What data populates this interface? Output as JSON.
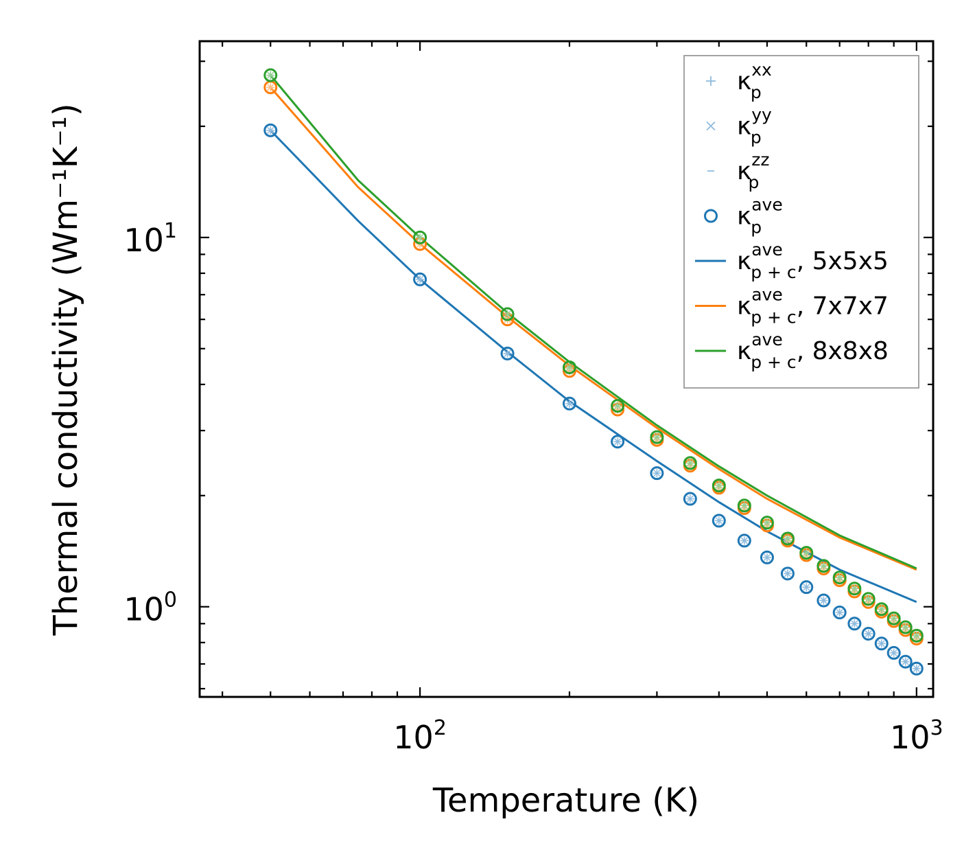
{
  "chart_data": {
    "type": "line",
    "xscale": "log",
    "yscale": "log",
    "xlabel": "Temperature (K)",
    "ylabel": "Thermal conductivity (Wm⁻¹K⁻¹)",
    "xlim": [
      36,
      1080
    ],
    "ylim": [
      0.57,
      34
    ],
    "xticks": [
      {
        "value": 100,
        "base": "10",
        "exp": "2"
      },
      {
        "value": 1000,
        "base": "10",
        "exp": "3"
      }
    ],
    "yticks": [
      {
        "value": 1,
        "base": "10",
        "exp": "0"
      },
      {
        "value": 10,
        "base": "10",
        "exp": "1"
      }
    ],
    "x": [
      50,
      100,
      150,
      200,
      250,
      300,
      350,
      400,
      450,
      500,
      550,
      600,
      650,
      700,
      750,
      800,
      850,
      900,
      950,
      1000
    ],
    "scatter_series": [
      {
        "name": "5x5x5",
        "color": "#1f77b4",
        "values": [
          19.5,
          7.7,
          4.85,
          3.55,
          2.8,
          2.3,
          1.96,
          1.71,
          1.51,
          1.36,
          1.23,
          1.13,
          1.04,
          0.965,
          0.9,
          0.845,
          0.795,
          0.75,
          0.71,
          0.68
        ]
      },
      {
        "name": "7x7x7",
        "color": "#ff7f0e",
        "values": [
          25.5,
          9.6,
          6.0,
          4.35,
          3.42,
          2.83,
          2.41,
          2.1,
          1.85,
          1.66,
          1.51,
          1.38,
          1.27,
          1.18,
          1.1,
          1.03,
          0.97,
          0.915,
          0.865,
          0.82
        ]
      },
      {
        "name": "8x8x8",
        "color": "#2ca02c",
        "values": [
          27.5,
          10.0,
          6.2,
          4.45,
          3.5,
          2.88,
          2.45,
          2.13,
          1.88,
          1.69,
          1.53,
          1.4,
          1.29,
          1.2,
          1.12,
          1.05,
          0.985,
          0.93,
          0.88,
          0.835
        ]
      }
    ],
    "line_series": [
      {
        "name": "5x5x5",
        "color": "#1f77b4",
        "x": [
          50,
          75,
          100,
          150,
          200,
          300,
          400,
          500,
          700,
          1000
        ],
        "values": [
          19.5,
          11.1,
          7.7,
          4.9,
          3.6,
          2.48,
          1.92,
          1.6,
          1.26,
          1.03
        ]
      },
      {
        "name": "7x7x7",
        "color": "#ff7f0e",
        "x": [
          50,
          75,
          100,
          150,
          200,
          300,
          400,
          500,
          700,
          1000
        ],
        "values": [
          25.5,
          13.7,
          9.6,
          6.1,
          4.5,
          3.05,
          2.36,
          1.96,
          1.54,
          1.26
        ]
      },
      {
        "name": "8x8x8",
        "color": "#2ca02c",
        "x": [
          50,
          75,
          100,
          150,
          200,
          300,
          400,
          500,
          700,
          1000
        ],
        "values": [
          27.5,
          14.3,
          10.0,
          6.25,
          4.6,
          3.1,
          2.4,
          2.0,
          1.56,
          1.27
        ]
      }
    ],
    "legend": {
      "position": "upper-right",
      "entries": [
        {
          "base": "κ",
          "sub": "p",
          "sup": "xx",
          "suffix": "",
          "marker": "plus",
          "color": "#8fbbdd"
        },
        {
          "base": "κ",
          "sub": "p",
          "sup": "yy",
          "suffix": "",
          "marker": "cross",
          "color": "#8fbbdd"
        },
        {
          "base": "κ",
          "sub": "p",
          "sup": "zz",
          "suffix": "",
          "marker": "dash",
          "color": "#8fbbdd"
        },
        {
          "base": "κ",
          "sub": "p",
          "sup": "ave",
          "suffix": "",
          "marker": "circle",
          "color": "#1f77b4"
        },
        {
          "base": "κ",
          "sub": "p + c",
          "sup": "ave",
          "suffix": ", 5x5x5",
          "marker": "line",
          "color": "#1f77b4"
        },
        {
          "base": "κ",
          "sub": "p + c",
          "sup": "ave",
          "suffix": ", 7x7x7",
          "marker": "line",
          "color": "#ff7f0e"
        },
        {
          "base": "κ",
          "sub": "p + c",
          "sup": "ave",
          "suffix": ", 8x8x8",
          "marker": "line",
          "color": "#2ca02c"
        }
      ]
    }
  }
}
